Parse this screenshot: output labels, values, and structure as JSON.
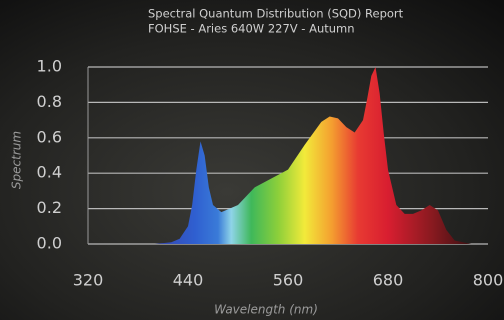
{
  "chart_data": {
    "type": "area",
    "title": "Spectral Quantum Distribution (SQD) Report",
    "subtitle": "FOHSE - Aries 640W 227V - Autumn",
    "x_label": "Wavelength (nm)",
    "y_label": "Spectrum",
    "x": [
      380,
      400,
      420,
      430,
      440,
      445,
      450,
      455,
      460,
      465,
      470,
      480,
      490,
      500,
      520,
      540,
      560,
      580,
      600,
      610,
      620,
      630,
      640,
      650,
      655,
      660,
      665,
      670,
      675,
      680,
      690,
      700,
      710,
      720,
      730,
      740,
      750,
      760,
      780
    ],
    "values": [
      0,
      0,
      0.01,
      0.03,
      0.1,
      0.22,
      0.42,
      0.58,
      0.5,
      0.32,
      0.22,
      0.18,
      0.2,
      0.22,
      0.32,
      0.37,
      0.42,
      0.56,
      0.69,
      0.72,
      0.71,
      0.66,
      0.63,
      0.7,
      0.82,
      0.95,
      1.0,
      0.85,
      0.62,
      0.42,
      0.22,
      0.17,
      0.17,
      0.19,
      0.22,
      0.19,
      0.08,
      0.02,
      0
    ],
    "xlim": [
      320,
      800
    ],
    "ylim": [
      0,
      1
    ],
    "xticks": [
      320,
      440,
      560,
      680,
      800
    ],
    "yticks": [
      {
        "value": 0,
        "label": "0.0"
      },
      {
        "value": 0.2,
        "label": "0.2"
      },
      {
        "value": 0.4,
        "label": "0.4"
      },
      {
        "value": 0.6,
        "label": "0.6"
      },
      {
        "value": 0.8,
        "label": "0.8"
      },
      {
        "value": 1,
        "label": "1.0"
      }
    ],
    "grid": true
  }
}
